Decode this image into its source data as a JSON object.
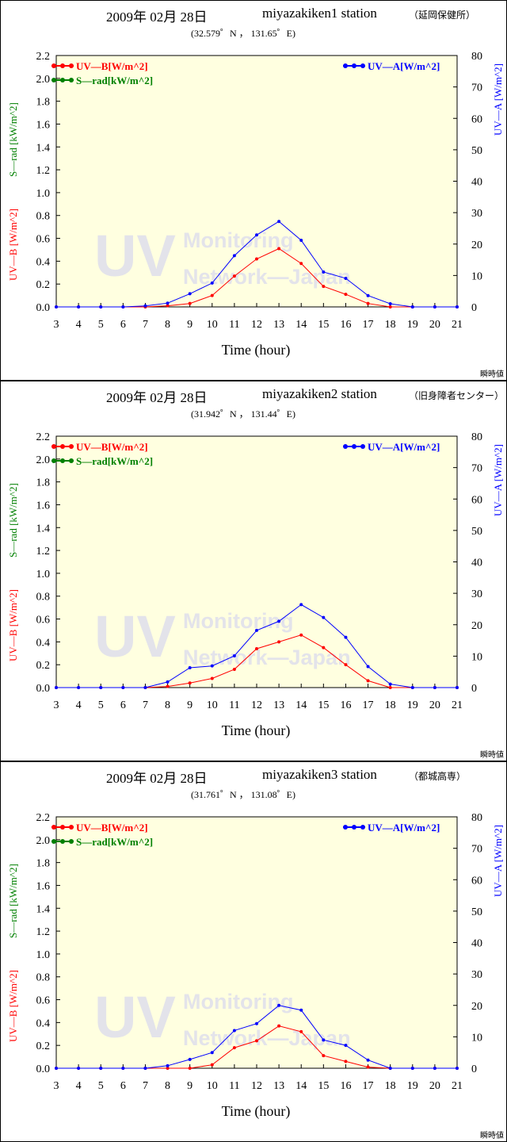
{
  "common": {
    "xlabel": "Time (hour)",
    "legend_uvb": "UV—B[W/m^2]",
    "legend_srad": "S—rad[kW/m^2]",
    "legend_uva": "UV—A[W/m^2]",
    "ylabel_left_uvb": "UV—B [W/m^2]",
    "ylabel_left_srad": "S—rad [kW/m^2]",
    "ylabel_right": "UV—A [W/m^2]",
    "display_mode": "瞬時値",
    "watermark_big": "UV",
    "watermark_line1": "Monitoring",
    "watermark_line2": "Network—Japan"
  },
  "colors": {
    "plot_bg": "#ffffe0",
    "uvb": "#ff0000",
    "srad": "#008000",
    "uva": "#0000ff",
    "watermark": "#e3e3ea"
  },
  "chart_data": [
    {
      "type": "line",
      "date": "2009年 02月 28日",
      "station": "miyazakiken1 station",
      "station_jp": "（延岡保健所）",
      "coords": "(32.579゜N ， 131.65゜E)",
      "x": [
        3,
        4,
        5,
        6,
        7,
        8,
        9,
        10,
        11,
        12,
        13,
        14,
        15,
        16,
        17,
        18,
        19,
        20,
        21
      ],
      "xlim": [
        3,
        21
      ],
      "ylim_left": [
        0,
        2.2
      ],
      "ylim_right": [
        0,
        80
      ],
      "series": [
        {
          "name": "UV—B[W/m^2]",
          "axis": "left",
          "values": [
            0,
            0,
            0,
            0,
            0,
            0.01,
            0.03,
            0.1,
            0.27,
            0.42,
            0.51,
            0.38,
            0.18,
            0.11,
            0.03,
            0,
            0,
            0,
            0
          ]
        },
        {
          "name": "UV—A[W/m^2]",
          "axis": "right",
          "values": [
            0,
            0,
            0,
            0,
            0.3,
            1.2,
            4.2,
            7.6,
            16.3,
            22.9,
            27.2,
            21.2,
            11.1,
            9.1,
            3.6,
            1,
            0,
            0,
            0
          ]
        }
      ]
    },
    {
      "type": "line",
      "date": "2009年 02月 28日",
      "station": "miyazakiken2 station",
      "station_jp": "（旧身障者センター）",
      "coords": "(31.942゜N ， 131.44゜E)",
      "x": [
        3,
        4,
        5,
        6,
        7,
        8,
        9,
        10,
        11,
        12,
        13,
        14,
        15,
        16,
        17,
        18,
        19,
        20,
        21
      ],
      "xlim": [
        3,
        21
      ],
      "ylim_left": [
        0,
        2.2
      ],
      "ylim_right": [
        0,
        80
      ],
      "series": [
        {
          "name": "UV—B[W/m^2]",
          "axis": "left",
          "values": [
            0,
            0,
            0,
            0,
            0,
            0.01,
            0.04,
            0.08,
            0.16,
            0.34,
            0.4,
            0.46,
            0.35,
            0.2,
            0.06,
            0,
            0,
            0,
            0
          ]
        },
        {
          "name": "UV—A[W/m^2]",
          "axis": "right",
          "values": [
            0,
            0,
            0,
            0,
            0,
            1.8,
            6.3,
            6.9,
            10.1,
            18.2,
            21.1,
            26.4,
            22.3,
            16,
            6.7,
            1.1,
            0,
            0,
            0
          ]
        }
      ]
    },
    {
      "type": "line",
      "date": "2009年 02月 28日",
      "station": "miyazakiken3 station",
      "station_jp": "（都城高専）",
      "coords": "(31.761゜N ， 131.08゜E)",
      "x": [
        3,
        4,
        5,
        6,
        7,
        8,
        9,
        10,
        11,
        12,
        13,
        14,
        15,
        16,
        17,
        18,
        19,
        20,
        21
      ],
      "xlim": [
        3,
        21
      ],
      "ylim_left": [
        0,
        2.2
      ],
      "ylim_right": [
        0,
        80
      ],
      "series": [
        {
          "name": "UV—B[W/m^2]",
          "axis": "left",
          "values": [
            0,
            0,
            0,
            0,
            0,
            0,
            0,
            0.03,
            0.18,
            0.24,
            0.37,
            0.32,
            0.11,
            0.06,
            0.01,
            0,
            0,
            0,
            0
          ]
        },
        {
          "name": "UV—A[W/m^2]",
          "axis": "right",
          "values": [
            0,
            0,
            0,
            0,
            0,
            0.8,
            2.8,
            5,
            12,
            14.2,
            20,
            18.5,
            9,
            7.3,
            2.6,
            0,
            0,
            0,
            0
          ]
        }
      ]
    }
  ]
}
